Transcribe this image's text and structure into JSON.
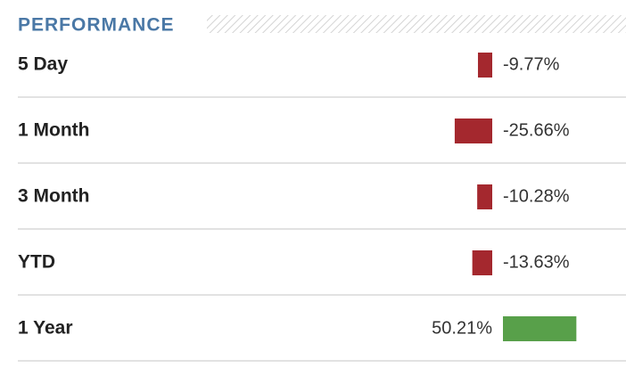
{
  "chart_data": {
    "type": "bar",
    "orientation": "horizontal",
    "title": "PERFORMANCE",
    "categories": [
      "5 Day",
      "1 Month",
      "3 Month",
      "YTD",
      "1 Year"
    ],
    "values": [
      -9.77,
      -25.66,
      -10.28,
      -13.63,
      50.21
    ],
    "value_labels": [
      "-9.77%",
      "-25.66%",
      "-10.28%",
      "-13.63%",
      "50.21%"
    ],
    "negative_color": "#a4282e",
    "positive_color": "#58a04a"
  }
}
